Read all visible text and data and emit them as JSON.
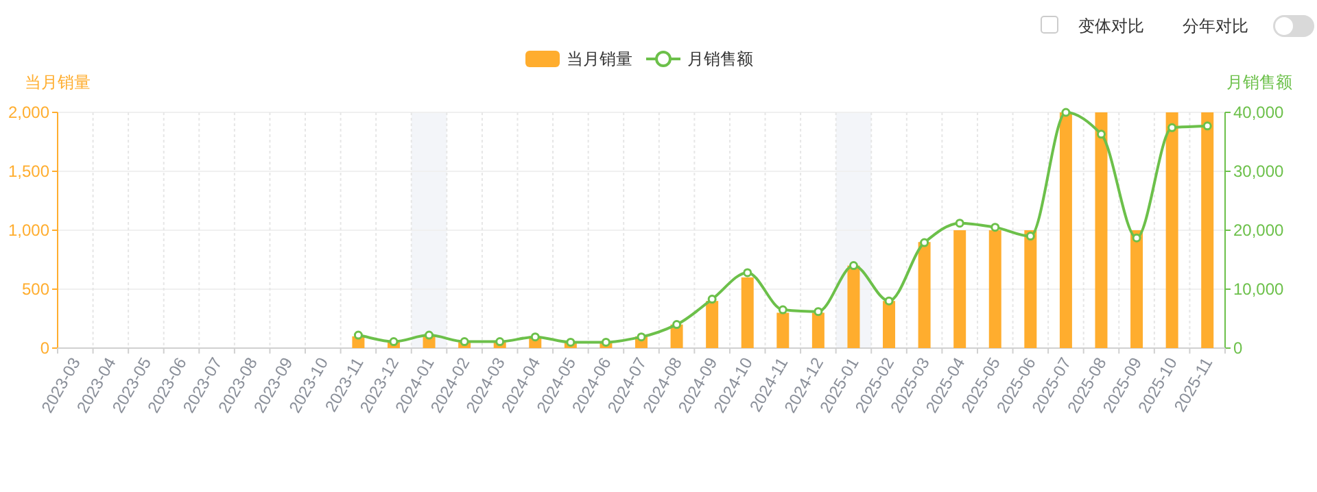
{
  "chart_data": {
    "type": "bar",
    "ylabel": "当月销量",
    "y2label": "月销售额",
    "categories": [
      "2023-03",
      "2023-04",
      "2023-05",
      "2023-06",
      "2023-07",
      "2023-08",
      "2023-09",
      "2023-10",
      "2023-11",
      "2023-12",
      "2024-01",
      "2024-02",
      "2024-03",
      "2024-04",
      "2024-05",
      "2024-06",
      "2024-07",
      "2024-08",
      "2024-09",
      "2024-10",
      "2024-11",
      "2024-12",
      "2025-01",
      "2025-02",
      "2025-03",
      "2025-04",
      "2025-05",
      "2025-06",
      "2025-07",
      "2025-08",
      "2025-09",
      "2025-10",
      "2025-11"
    ],
    "series": [
      {
        "name": "当月销量",
        "color": "#ffad2e",
        "values": [
          null,
          null,
          null,
          null,
          null,
          null,
          null,
          null,
          100,
          50,
          100,
          50,
          50,
          100,
          50,
          50,
          100,
          200,
          400,
          600,
          300,
          300,
          700,
          400,
          900,
          1000,
          1000,
          1000,
          2000,
          2000,
          1000,
          2000,
          2000
        ]
      },
      {
        "name": "月销售额",
        "type": "line",
        "axis": "y2",
        "color": "#6cc04a",
        "marker": "circle",
        "values": [
          null,
          null,
          null,
          null,
          null,
          null,
          null,
          null,
          2200,
          1100,
          2200,
          1100,
          1100,
          1900,
          1000,
          1000,
          1900,
          4000,
          8300,
          12800,
          6500,
          6200,
          14000,
          8000,
          17900,
          21200,
          20500,
          19000,
          40000,
          36300,
          18700,
          37400,
          37700
        ]
      }
    ],
    "ylim": [
      0,
      2000
    ],
    "yticks": [
      0,
      {
        "value": 500,
        "label": "500"
      },
      {
        "value": 1000,
        "label": "1,000"
      },
      {
        "value": 1500,
        "label": "1,500"
      },
      {
        "value": 2000,
        "label": "2,000"
      }
    ],
    "y2lim": [
      0,
      40000
    ],
    "y2ticks": [
      0,
      {
        "value": 10000,
        "label": "10,000"
      },
      {
        "value": 20000,
        "label": "20,000"
      },
      {
        "value": 30000,
        "label": "30,000"
      },
      {
        "value": 40000,
        "label": "40,000"
      }
    ],
    "bands": [
      {
        "axis": "x",
        "from": "2024-01",
        "to": "2024-01",
        "color": "#f3f5f9"
      },
      {
        "axis": "x",
        "from": "2025-01",
        "to": "2025-01",
        "color": "#f3f5f9"
      }
    ],
    "grid": true,
    "legend": "top",
    "annotations": [
      "变体对比",
      "分年对比"
    ]
  }
}
